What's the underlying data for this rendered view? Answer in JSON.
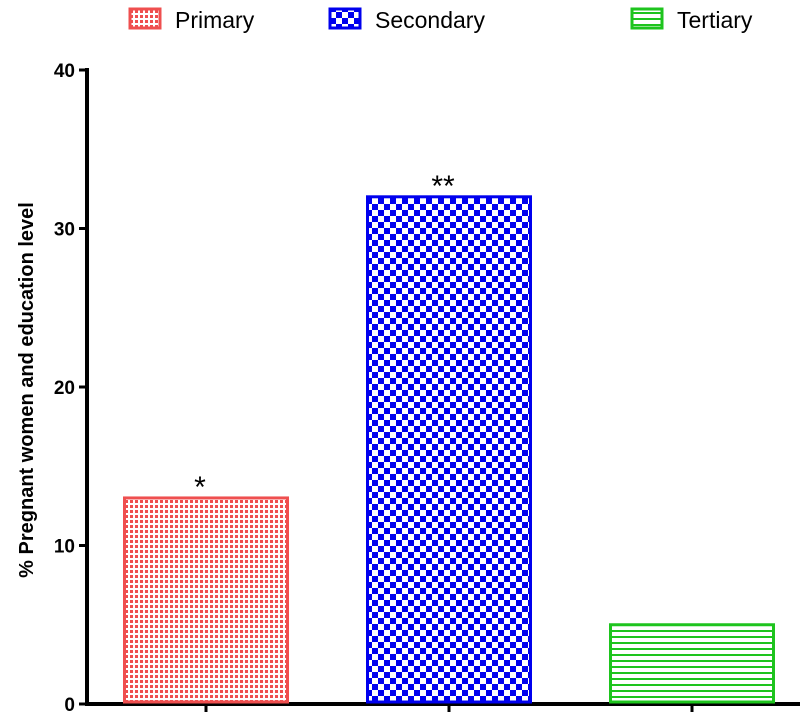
{
  "chart_data": {
    "type": "bar",
    "categories": [
      "Primary",
      "Secondary",
      "Tertiary"
    ],
    "values": [
      13,
      32,
      5
    ],
    "annotations": [
      "*",
      "**",
      ""
    ],
    "ylabel": "% Pregnant women and education level",
    "xlabel": "",
    "ylim": [
      0,
      40
    ],
    "yticks": [
      0,
      10,
      20,
      30,
      40
    ],
    "legend_position": "top",
    "grid": false,
    "colors": [
      "#ef4f4f",
      "#0000ee",
      "#1ec41e"
    ],
    "patterns": [
      "fine-dots",
      "checkerboard",
      "horizontal-lines"
    ]
  }
}
